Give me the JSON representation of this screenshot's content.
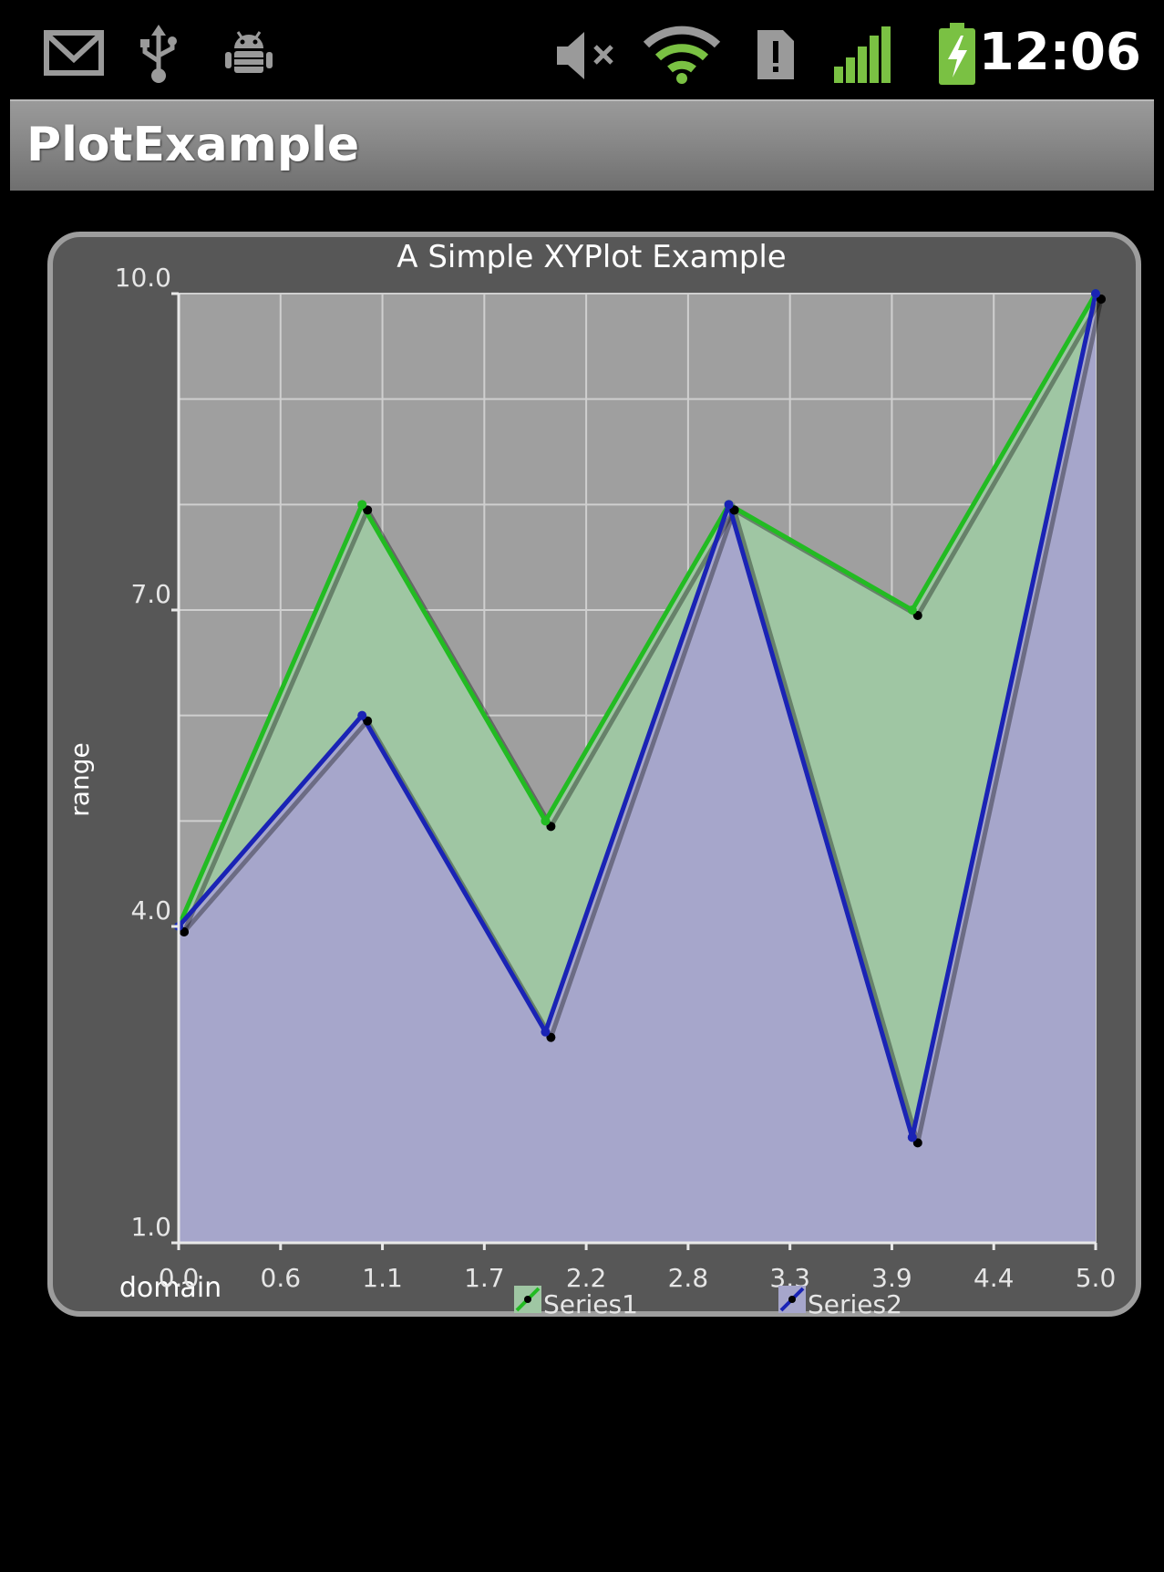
{
  "status_bar": {
    "time": "12:06",
    "icons": [
      "gmail-icon",
      "usb-icon",
      "android-debug-icon",
      "volume-muted-icon",
      "wifi-icon",
      "sim-alert-icon",
      "signal-icon",
      "battery-charging-icon"
    ]
  },
  "app": {
    "title": "PlotExample"
  },
  "colors": {
    "series1_line": "#22bb22",
    "series1_fill": "#9fc6a3",
    "series2_line": "#1a23b5",
    "series2_fill": "#a6a6cb",
    "plot_bg": "#9f9f9f",
    "widget_bg": "#575757"
  },
  "chart_data": {
    "type": "area",
    "title": "A Simple XYPlot Example",
    "xlabel": "domain",
    "ylabel": "range",
    "x": [
      0,
      1,
      2,
      3,
      4,
      5
    ],
    "xlim": [
      0,
      5
    ],
    "ylim": [
      1,
      10
    ],
    "grid": true,
    "legend": "bottom",
    "x_ticks": [
      "0.0",
      "0.6",
      "1.1",
      "1.7",
      "2.2",
      "2.8",
      "3.3",
      "3.9",
      "4.4",
      "5.0"
    ],
    "y_ticks": [
      "1.0",
      "4.0",
      "7.0",
      "10.0"
    ],
    "series": [
      {
        "name": "Series1",
        "values": [
          4,
          8,
          5,
          8,
          7,
          10
        ]
      },
      {
        "name": "Series2",
        "values": [
          4,
          6,
          3,
          8,
          2,
          10
        ]
      }
    ]
  }
}
